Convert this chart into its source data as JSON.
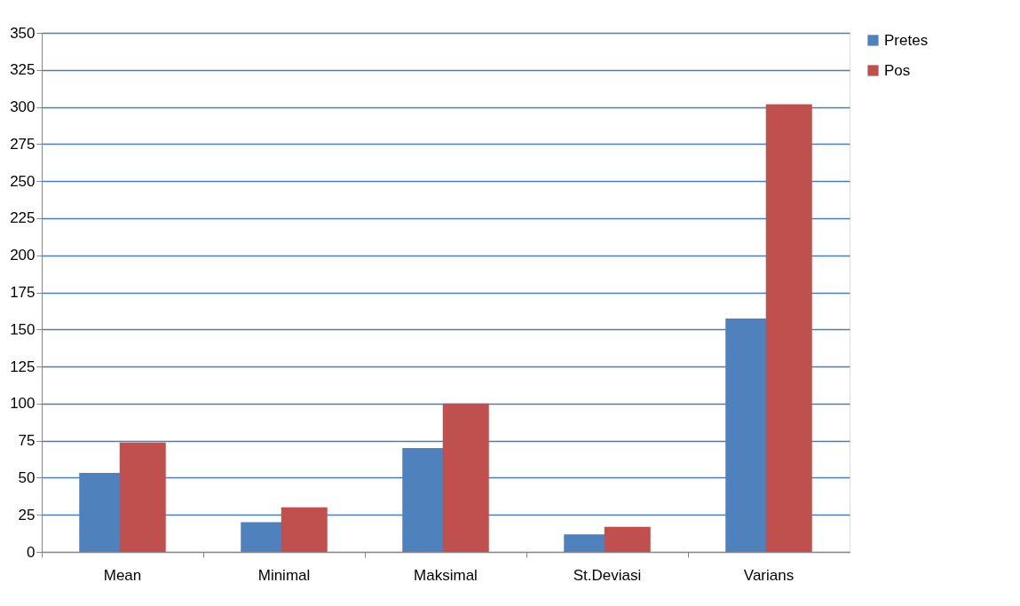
{
  "chart_data": {
    "type": "bar",
    "categories": [
      "Mean",
      "Minimal",
      "Maksimal",
      "St.Deviasi",
      "Varians"
    ],
    "series": [
      {
        "name": "Pretes",
        "color": "#4f81bd",
        "values": [
          53.2,
          20,
          70,
          11.8,
          157.3
        ]
      },
      {
        "name": "Pos",
        "color": "#c0504d",
        "values": [
          73.7,
          30,
          100,
          16.9,
          301.9
        ]
      }
    ],
    "ylim": [
      0,
      350
    ],
    "yticks": [
      0,
      25,
      50,
      75,
      100,
      125,
      150,
      175,
      200,
      225,
      250,
      275,
      300,
      325,
      350
    ],
    "grid": "y",
    "legend": "right"
  }
}
